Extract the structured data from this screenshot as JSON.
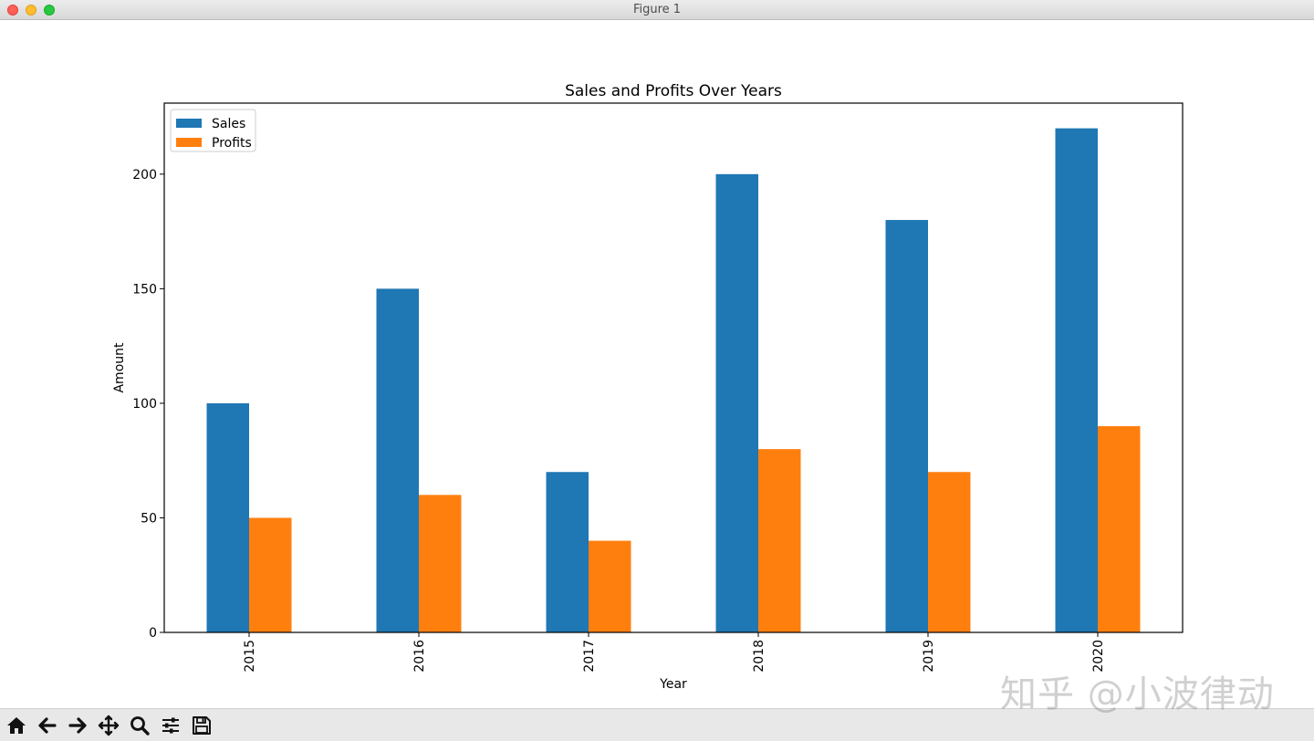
{
  "window": {
    "title": "Figure 1"
  },
  "toolbar": {
    "buttons": [
      {
        "name": "home-button",
        "icon": "home-icon"
      },
      {
        "name": "back-button",
        "icon": "arrow-left-icon"
      },
      {
        "name": "forward-button",
        "icon": "arrow-right-icon"
      },
      {
        "name": "pan-button",
        "icon": "move-icon"
      },
      {
        "name": "zoom-button",
        "icon": "magnifier-icon"
      },
      {
        "name": "configure-subplots-button",
        "icon": "sliders-icon"
      },
      {
        "name": "save-button",
        "icon": "floppy-disk-icon"
      }
    ]
  },
  "watermark": "知乎 @小波律动",
  "chart_data": {
    "type": "bar",
    "title": "Sales and Profits Over Years",
    "xlabel": "Year",
    "ylabel": "Amount",
    "categories": [
      "2015",
      "2016",
      "2017",
      "2018",
      "2019",
      "2020"
    ],
    "series": [
      {
        "name": "Sales",
        "color": "#1f77b4",
        "values": [
          100,
          150,
          70,
          200,
          180,
          220
        ]
      },
      {
        "name": "Profits",
        "color": "#ff7f0e",
        "values": [
          50,
          60,
          40,
          80,
          70,
          90
        ]
      }
    ],
    "ylim": [
      0,
      231
    ],
    "yticks": [
      0,
      50,
      100,
      150,
      200
    ],
    "grid": false,
    "legend": "top-left",
    "xtick_rotation": 90
  }
}
